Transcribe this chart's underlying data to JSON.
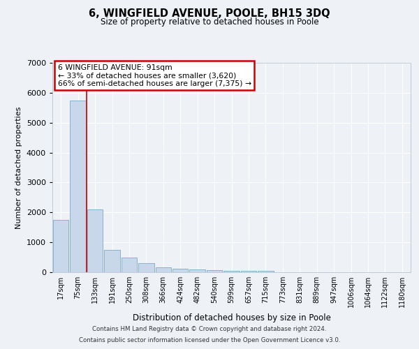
{
  "title": "6, WINGFIELD AVENUE, POOLE, BH15 3DQ",
  "subtitle": "Size of property relative to detached houses in Poole",
  "xlabel": "Distribution of detached houses by size in Poole",
  "ylabel": "Number of detached properties",
  "categories": [
    "17sqm",
    "75sqm",
    "133sqm",
    "191sqm",
    "250sqm",
    "308sqm",
    "366sqm",
    "424sqm",
    "482sqm",
    "540sqm",
    "599sqm",
    "657sqm",
    "715sqm",
    "773sqm",
    "831sqm",
    "889sqm",
    "947sqm",
    "1006sqm",
    "1064sqm",
    "1122sqm",
    "1180sqm"
  ],
  "values": [
    1750,
    5750,
    2100,
    750,
    490,
    295,
    170,
    125,
    100,
    75,
    55,
    50,
    50,
    0,
    0,
    0,
    0,
    0,
    0,
    0,
    0
  ],
  "bar_color": "#c8d8ea",
  "bar_edge_color": "#7aaac8",
  "property_line_index": 1.5,
  "annotation_text_line1": "6 WINGFIELD AVENUE: 91sqm",
  "annotation_text_line2": "← 33% of detached houses are smaller (3,620)",
  "annotation_text_line3": "66% of semi-detached houses are larger (7,375) →",
  "annotation_box_color": "#ffffff",
  "annotation_box_edge": "#cc0000",
  "line_color": "#cc0000",
  "ylim": [
    0,
    7000
  ],
  "yticks": [
    0,
    1000,
    2000,
    3000,
    4000,
    5000,
    6000,
    7000
  ],
  "background_color": "#eef2f7",
  "grid_color": "#ffffff",
  "footer_line1": "Contains HM Land Registry data © Crown copyright and database right 2024.",
  "footer_line2": "Contains public sector information licensed under the Open Government Licence v3.0."
}
